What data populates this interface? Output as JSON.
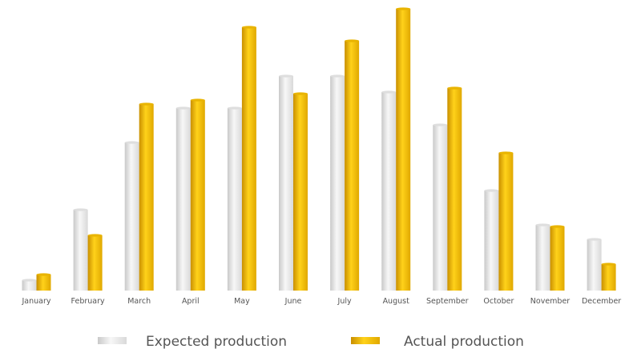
{
  "chart_data": {
    "type": "bar",
    "title": "",
    "xlabel": "",
    "ylabel": "",
    "categories": [
      "January",
      "February",
      "March",
      "April",
      "May",
      "June",
      "July",
      "August",
      "September",
      "October",
      "November",
      "December"
    ],
    "series": [
      {
        "name": "Expected production",
        "values": [
          13,
          101,
          185,
          228,
          228,
          268,
          268,
          248,
          207,
          125,
          82,
          64
        ],
        "color": "#e6e6e6"
      },
      {
        "name": "Actual production",
        "values": [
          20,
          69,
          233,
          238,
          329,
          246,
          312,
          352,
          253,
          172,
          80,
          33
        ],
        "color": "#f5c000"
      }
    ],
    "ylim": [
      0,
      352
    ],
    "grid": false,
    "legend": "bottom"
  }
}
